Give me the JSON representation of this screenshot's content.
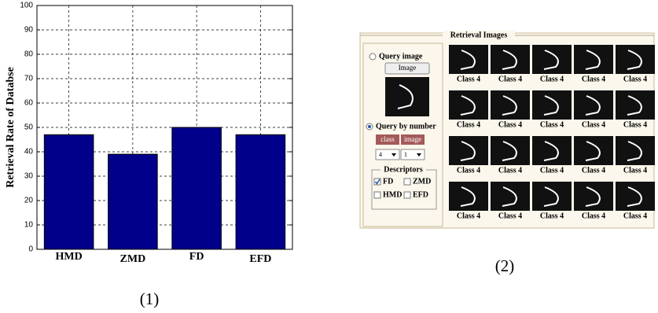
{
  "chart_data": {
    "type": "bar",
    "y_label": "Retrieval Rate of Databse",
    "categories": [
      "HMD",
      "ZMD",
      "FD",
      "EFD"
    ],
    "values": [
      47,
      39,
      50,
      47
    ],
    "color": "#00008b",
    "ylim": [
      0,
      100
    ],
    "yticks": [
      0,
      10,
      20,
      30,
      40,
      50,
      60,
      70,
      80,
      90,
      100
    ],
    "grid": true
  },
  "captions": [
    "(1)",
    "(2)"
  ],
  "panel": {
    "title": "Retrieval Images",
    "query_image_option": "Query image",
    "image_button": "Image",
    "query_number_option": "Query by number",
    "class_tag": "class",
    "image_tag": "image",
    "class_select": "4",
    "image_select": "1",
    "descriptors": {
      "title": "Descriptors",
      "items": [
        {
          "label": "FD",
          "checked": true
        },
        {
          "label": "ZMD",
          "checked": false
        },
        {
          "label": "HMD",
          "checked": false
        },
        {
          "label": "EFD",
          "checked": false
        }
      ]
    },
    "results": [
      "Class 4",
      "Class 4",
      "Class 4",
      "Class 4",
      "Class 4",
      "Class 4",
      "Class 4",
      "Class 4",
      "Class 4",
      "Class 4",
      "Class 4",
      "Class 4",
      "Class 4",
      "Class 4",
      "Class 4",
      "Class 4",
      "Class 4",
      "Class 4",
      "Class 4",
      "Class 4"
    ]
  }
}
